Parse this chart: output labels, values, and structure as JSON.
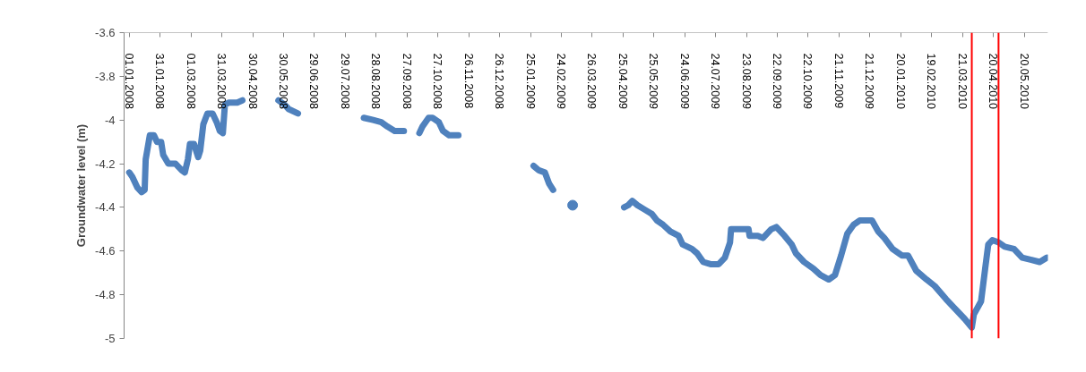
{
  "chart_data": {
    "type": "line",
    "ylabel": "Groundwater level (m)",
    "xlim": [
      "2007-12-27",
      "2010-06-12"
    ],
    "xticks": [
      {
        "value": "2008-01-01",
        "label": "01.01.2008"
      },
      {
        "value": "2008-01-31",
        "label": "31.01.2008"
      },
      {
        "value": "2008-03-01",
        "label": "01.03.2008"
      },
      {
        "value": "2008-03-31",
        "label": "31.03.2008"
      },
      {
        "value": "2008-04-30",
        "label": "30.04.2008"
      },
      {
        "value": "2008-05-30",
        "label": "30.05.2008"
      },
      {
        "value": "2008-06-29",
        "label": "29.06.2008"
      },
      {
        "value": "2008-07-29",
        "label": "29.07.2008"
      },
      {
        "value": "2008-08-28",
        "label": "28.08.2008"
      },
      {
        "value": "2008-09-27",
        "label": "27.09.2008"
      },
      {
        "value": "2008-10-27",
        "label": "27.10.2008"
      },
      {
        "value": "2008-11-26",
        "label": "26.11.2008"
      },
      {
        "value": "2008-12-26",
        "label": "26.12.2008"
      },
      {
        "value": "2009-01-25",
        "label": "25.01.2009"
      },
      {
        "value": "2009-02-24",
        "label": "24.02.2009"
      },
      {
        "value": "2009-03-26",
        "label": "26.03.2009"
      },
      {
        "value": "2009-04-25",
        "label": "25.04.2009"
      },
      {
        "value": "2009-05-25",
        "label": "25.05.2009"
      },
      {
        "value": "2009-06-24",
        "label": "24.06.2009"
      },
      {
        "value": "2009-07-24",
        "label": "24.07.2009"
      },
      {
        "value": "2009-08-23",
        "label": "23.08.2009"
      },
      {
        "value": "2009-09-22",
        "label": "22.09.2009"
      },
      {
        "value": "2009-10-22",
        "label": "22.10.2009"
      },
      {
        "value": "2009-11-21",
        "label": "21.11.2009"
      },
      {
        "value": "2009-12-21",
        "label": "21.12.2009"
      },
      {
        "value": "2010-01-20",
        "label": "20.01.2010"
      },
      {
        "value": "2010-02-19",
        "label": "19.02.2010"
      },
      {
        "value": "2010-03-21",
        "label": "21.03.2010"
      },
      {
        "value": "2010-04-20",
        "label": "20.04.2010"
      },
      {
        "value": "2010-05-20",
        "label": "20.05.2010"
      }
    ],
    "ylim": [
      -5,
      -3.6
    ],
    "yticks": [
      -5,
      -4.8,
      -4.6,
      -4.4,
      -4.2,
      -4,
      -3.8,
      -3.6
    ],
    "grid": false,
    "ref_lines": [
      {
        "axis": "x",
        "value": "2010-03-30",
        "color": "#ff0000"
      },
      {
        "axis": "x",
        "value": "2010-04-25",
        "color": "#ff0000"
      }
    ],
    "series": [
      {
        "color": "#4f81bd",
        "x": [
          "2008-01-01",
          "2008-01-04",
          "2008-01-09",
          "2008-01-13",
          "2008-01-16",
          "2008-01-17",
          "2008-01-21",
          "2008-01-25",
          "2008-01-28",
          "2008-02-01",
          "2008-02-03",
          "2008-02-08",
          "2008-02-15",
          "2008-02-21",
          "2008-02-24",
          "2008-02-27",
          "2008-02-29",
          "2008-03-04",
          "2008-03-08",
          "2008-03-10",
          "2008-03-13",
          "2008-03-17",
          "2008-03-22",
          "2008-03-26",
          "2008-03-29",
          "2008-04-01",
          "2008-04-03",
          "2008-04-07",
          "2008-04-15",
          "2008-04-20",
          "2008-05-01",
          "2008-05-25",
          "2008-05-31",
          "2008-06-04",
          "2008-06-13",
          "2008-07-01",
          "2008-08-16",
          "2008-08-25",
          "2008-09-02",
          "2008-09-08",
          "2008-09-15",
          "2008-09-24",
          "2008-10-01",
          "2008-10-09",
          "2008-10-12",
          "2008-10-18",
          "2008-10-22",
          "2008-10-28",
          "2008-11-01",
          "2008-11-07",
          "2008-11-16",
          "2008-12-01",
          "2009-01-28",
          "2009-02-02",
          "2009-02-08",
          "2009-02-12",
          "2009-02-16",
          "2009-04-01",
          "2009-04-26",
          "2009-04-30",
          "2009-05-04",
          "2009-05-09",
          "2009-05-16",
          "2009-05-23",
          "2009-05-28",
          "2009-06-03",
          "2009-06-10",
          "2009-06-18",
          "2009-06-22",
          "2009-07-01",
          "2009-07-06",
          "2009-07-12",
          "2009-07-19",
          "2009-07-27",
          "2009-08-02",
          "2009-08-07",
          "2009-08-08",
          "2009-08-25",
          "2009-08-26",
          "2009-09-03",
          "2009-09-08",
          "2009-09-16",
          "2009-09-21",
          "2009-09-29",
          "2009-10-06",
          "2009-10-10",
          "2009-10-18",
          "2009-10-27",
          "2009-11-03",
          "2009-11-11",
          "2009-11-17",
          "2009-11-23",
          "2009-11-29",
          "2009-12-05",
          "2009-12-11",
          "2009-12-23",
          "2009-12-29",
          "2010-01-04",
          "2010-01-12",
          "2010-01-21",
          "2010-01-27",
          "2010-02-04",
          "2010-02-14",
          "2010-02-22",
          "2010-03-05",
          "2010-03-13",
          "2010-03-23",
          "2010-03-30",
          "2010-04-01",
          "2010-04-08",
          "2010-04-12",
          "2010-04-15",
          "2010-04-19",
          "2010-04-25",
          "2010-05-01",
          "2010-05-10",
          "2010-05-18",
          "2010-05-27",
          "2010-06-04",
          "2010-06-11"
        ],
        "values": [
          -4.24,
          -4.26,
          -4.31,
          -4.33,
          -4.32,
          -4.18,
          -4.07,
          -4.07,
          -4.1,
          -4.1,
          -4.16,
          -4.2,
          -4.2,
          -4.23,
          -4.24,
          -4.18,
          -4.11,
          -4.11,
          -4.17,
          -4.14,
          -4.02,
          -3.97,
          -3.97,
          -4.01,
          -4.05,
          -4.06,
          -3.93,
          -3.92,
          -3.92,
          -3.91,
          null,
          -3.91,
          -3.93,
          -3.95,
          -3.97,
          null,
          -3.99,
          -4.0,
          -4.01,
          -4.03,
          -4.05,
          -4.05,
          null,
          -4.06,
          -4.03,
          -3.99,
          -3.99,
          -4.01,
          -4.05,
          -4.07,
          -4.07,
          null,
          -4.21,
          -4.23,
          -4.24,
          -4.29,
          -4.32,
          null,
          -4.4,
          -4.39,
          -4.37,
          -4.39,
          -4.41,
          -4.43,
          -4.46,
          -4.48,
          -4.51,
          -4.53,
          -4.57,
          -4.59,
          -4.61,
          -4.65,
          -4.66,
          -4.66,
          -4.63,
          -4.56,
          -4.5,
          -4.5,
          -4.53,
          -4.53,
          -4.54,
          -4.5,
          -4.49,
          -4.53,
          -4.57,
          -4.61,
          -4.65,
          -4.68,
          -4.71,
          -4.73,
          -4.71,
          -4.62,
          -4.52,
          -4.48,
          -4.46,
          -4.46,
          -4.51,
          -4.54,
          -4.59,
          -4.62,
          -4.62,
          -4.69,
          -4.73,
          -4.76,
          -4.82,
          -4.86,
          -4.91,
          -4.95,
          -4.89,
          -4.83,
          -4.68,
          -4.57,
          -4.55,
          -4.56,
          -4.58,
          -4.59,
          -4.63,
          -4.64,
          -4.65,
          -4.63
        ]
      },
      {
        "type": "scatter",
        "marker": "circle",
        "color": "#4f81bd",
        "x": [
          "2009-03-07"
        ],
        "values": [
          -4.39
        ]
      }
    ]
  }
}
